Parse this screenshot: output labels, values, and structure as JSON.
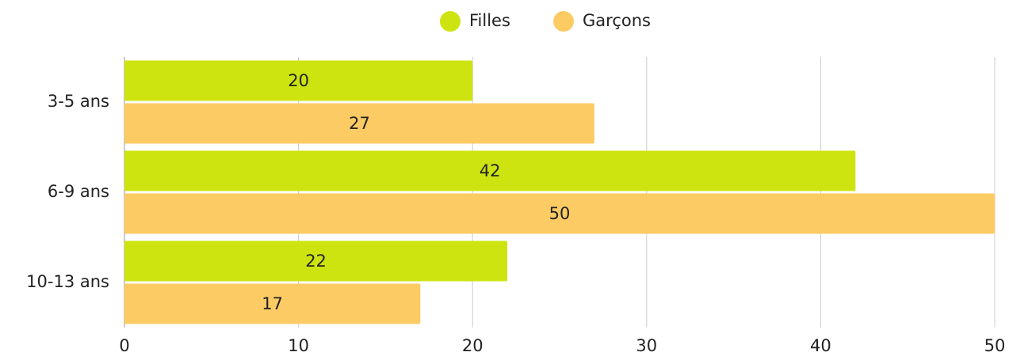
{
  "chart_data": {
    "type": "hbar",
    "categories": [
      "3-5 ans",
      "6-9 ans",
      "10-13 ans"
    ],
    "series": [
      {
        "name": "Filles",
        "color": "#cde410",
        "values": [
          20,
          42,
          22
        ]
      },
      {
        "name": "Garçons",
        "color": "#fdcb64",
        "values": [
          27,
          50,
          17
        ]
      }
    ],
    "xlim": [
      0,
      50
    ],
    "xticks": [
      0,
      10,
      20,
      30,
      40,
      50
    ],
    "grid": true,
    "legend": "top"
  }
}
